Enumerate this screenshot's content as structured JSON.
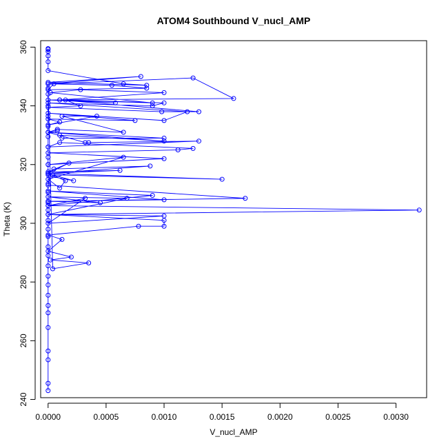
{
  "chart_data": {
    "type": "line",
    "title": "ATOM4 Southbound V_nucl_AMP",
    "xlabel": "V_nucl_AMP",
    "ylabel": "Theta (K)",
    "xlim": [
      -6.4e-05,
      0.003264
    ],
    "ylim": [
      240.6,
      362.2
    ],
    "x_ticks": [
      0,
      0.0005,
      0.001,
      0.0015,
      0.002,
      0.0025,
      0.003
    ],
    "x_tick_labels": [
      "0.0000",
      "0.0005",
      "0.0010",
      "0.0015",
      "0.0020",
      "0.0025",
      "0.0030"
    ],
    "y_ticks": [
      240,
      260,
      280,
      300,
      320,
      340,
      360
    ],
    "y_tick_labels": [
      "240",
      "260",
      "280",
      "300",
      "320",
      "340",
      "360"
    ],
    "grid": false,
    "legend": "none",
    "marker": "open-circle",
    "series": [
      {
        "color": "#0000ff",
        "x": [
          0,
          0,
          0,
          0,
          0,
          0,
          0,
          0,
          0,
          0,
          0,
          0,
          0,
          0,
          0,
          0,
          0,
          0,
          0,
          0,
          0,
          0,
          0,
          0,
          0,
          0,
          0,
          0,
          0,
          0,
          0,
          4e-05,
          0.00035,
          2e-05,
          0.0002,
          0,
          0.00012,
          0,
          0.00078,
          0.001,
          0.001,
          0,
          0.001,
          0,
          0.00032,
          0,
          0,
          0.00045,
          0,
          0.00068,
          0,
          0.0032,
          0,
          0.0009,
          0,
          0.001,
          0,
          0.0017,
          0,
          2e-05,
          0.00022,
          4e-05,
          0.0015,
          0,
          0.00018,
          0,
          0.00062,
          0,
          5e-05,
          0.00088,
          0,
          0.00015,
          0.0001,
          0,
          0.00065,
          0,
          0.001,
          0,
          0.00112,
          0.00125,
          0.0001,
          0,
          0.0013,
          0.00035,
          0.00032,
          0,
          8e-05,
          0,
          0.001,
          0.00012,
          0.0001,
          0.001,
          0,
          8e-05,
          0.00065,
          0.00012,
          0.00042,
          0,
          0.0001,
          0,
          0.00075,
          0,
          0.001,
          0.0012,
          0,
          0.0009,
          0.001,
          0.00015,
          0.00028,
          0,
          0.00098,
          0.0013,
          0.0001,
          0.001,
          0.00028,
          2e-05,
          0.0009,
          0.0001,
          0.00058,
          0,
          0.0016,
          0.00125,
          5e-05,
          0,
          0.00085,
          0.00055,
          0,
          0.0008,
          0,
          0.00085,
          0.00065,
          0,
          0,
          0,
          0,
          0,
          0
        ],
        "y": [
          243,
          245.5,
          253.5,
          256.5,
          264.5,
          269.5,
          272,
          275.5,
          279,
          282,
          285.5,
          289,
          292,
          295.5,
          298,
          301,
          304.5,
          307,
          310.5,
          313.5,
          316.5,
          320,
          322.5,
          326,
          329.5,
          333,
          336.5,
          340,
          344,
          347.5,
          346,
          284.5,
          286.5,
          287.5,
          288.5,
          290.5,
          294.5,
          296,
          299,
          299,
          301,
          303,
          302.5,
          300,
          308.5,
          306,
          307.5,
          307,
          309,
          308.5,
          303,
          304.5,
          306,
          309.5,
          311,
          308,
          307.5,
          308.5,
          313,
          316,
          314.5,
          316.5,
          315,
          317,
          320.5,
          317.5,
          318,
          317,
          318.5,
          319.5,
          317,
          314.5,
          312,
          315,
          322.5,
          320,
          322,
          324,
          325,
          325.5,
          327.5,
          326,
          328,
          327.5,
          327.5,
          331,
          331.5,
          331,
          329,
          329,
          330,
          328,
          331,
          332,
          331,
          336.5,
          336.5,
          333.5,
          334.5,
          335.5,
          335,
          337.5,
          335,
          338,
          341,
          340,
          341,
          342,
          340,
          339.5,
          338,
          338,
          342,
          344.5,
          345.5,
          344.5,
          341,
          342,
          341,
          342,
          342.5,
          349.5,
          347.5,
          345.5,
          346,
          347,
          347.5,
          350,
          348,
          347,
          347.5,
          352,
          355,
          357,
          358.5,
          359.2,
          359.5
        ]
      }
    ]
  }
}
